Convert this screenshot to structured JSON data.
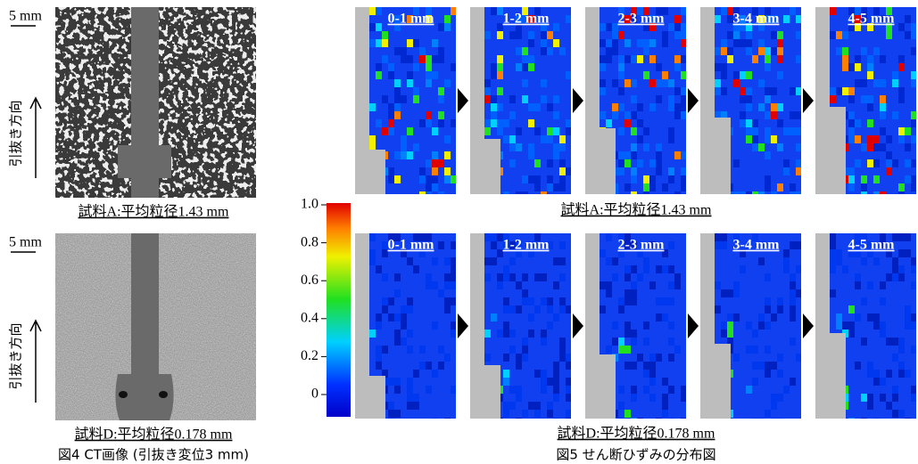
{
  "left": {
    "rows": [
      {
        "scale": "5 mm",
        "direction": "引抜き方向",
        "caption": "試料A:平均粒径1.43 mm"
      },
      {
        "scale": "5 mm",
        "direction": "引抜き方向",
        "caption": "試料D:平均粒径0.178 mm"
      }
    ],
    "caption": "図4 CT画像 (引抜き変位3 mm)"
  },
  "right": {
    "rows": [
      {
        "labels": [
          "0-1 mm",
          "1-2 mm",
          "2-3 mm",
          "3-4 mm",
          "4-5 mm"
        ],
        "caption": "試料A:平均粒径1.43 mm"
      },
      {
        "labels": [
          "0-1 mm",
          "1-2 mm",
          "2-3 mm",
          "3-4 mm",
          "4-5 mm"
        ],
        "caption": "試料D:平均粒径0.178 mm"
      }
    ],
    "colorbar": {
      "ticks": [
        {
          "value": 1,
          "label": "1.0"
        },
        0.8,
        0.6,
        0.4,
        0.2,
        0
      ]
    },
    "caption": "図5 せん断ひずみの分布図"
  }
}
